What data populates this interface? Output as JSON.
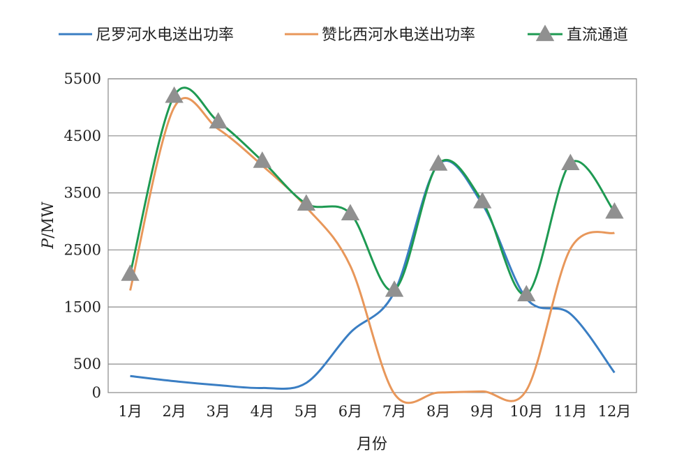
{
  "chart_data": {
    "type": "line",
    "xlabel": "月份",
    "ylabel_italic": "P",
    "ylabel_rest": "/MW",
    "categories": [
      "1月",
      "2月",
      "3月",
      "4月",
      "5月",
      "6月",
      "7月",
      "8月",
      "9月",
      "10月",
      "11月",
      "12月"
    ],
    "yticks": [
      0,
      500,
      1500,
      2500,
      3500,
      4500,
      5500
    ],
    "gridlines": [
      500,
      1500,
      2500,
      3500,
      4500,
      5500
    ],
    "ylim": [
      0,
      5500
    ],
    "grid": true,
    "legend_position": "top",
    "series": [
      {
        "name": "尼罗河水电送出功率",
        "color": "#3a7ec3",
        "marker": "none",
        "values": [
          290,
          200,
          130,
          80,
          170,
          1050,
          1760,
          4000,
          3300,
          1650,
          1380,
          350
        ]
      },
      {
        "name": "赞比西河水电送出功率",
        "color": "#e8975a",
        "marker": "none",
        "values": [
          1790,
          5000,
          4620,
          3980,
          3250,
          2220,
          -20,
          0,
          20,
          40,
          2520,
          2800
        ]
      },
      {
        "name": "直流通道",
        "color": "#1e9a52",
        "marker": "triangle",
        "marker_color": "#909090",
        "values": [
          2080,
          5200,
          4750,
          4060,
          3310,
          3140,
          1800,
          4010,
          3350,
          1720,
          4020,
          3170
        ]
      }
    ]
  }
}
